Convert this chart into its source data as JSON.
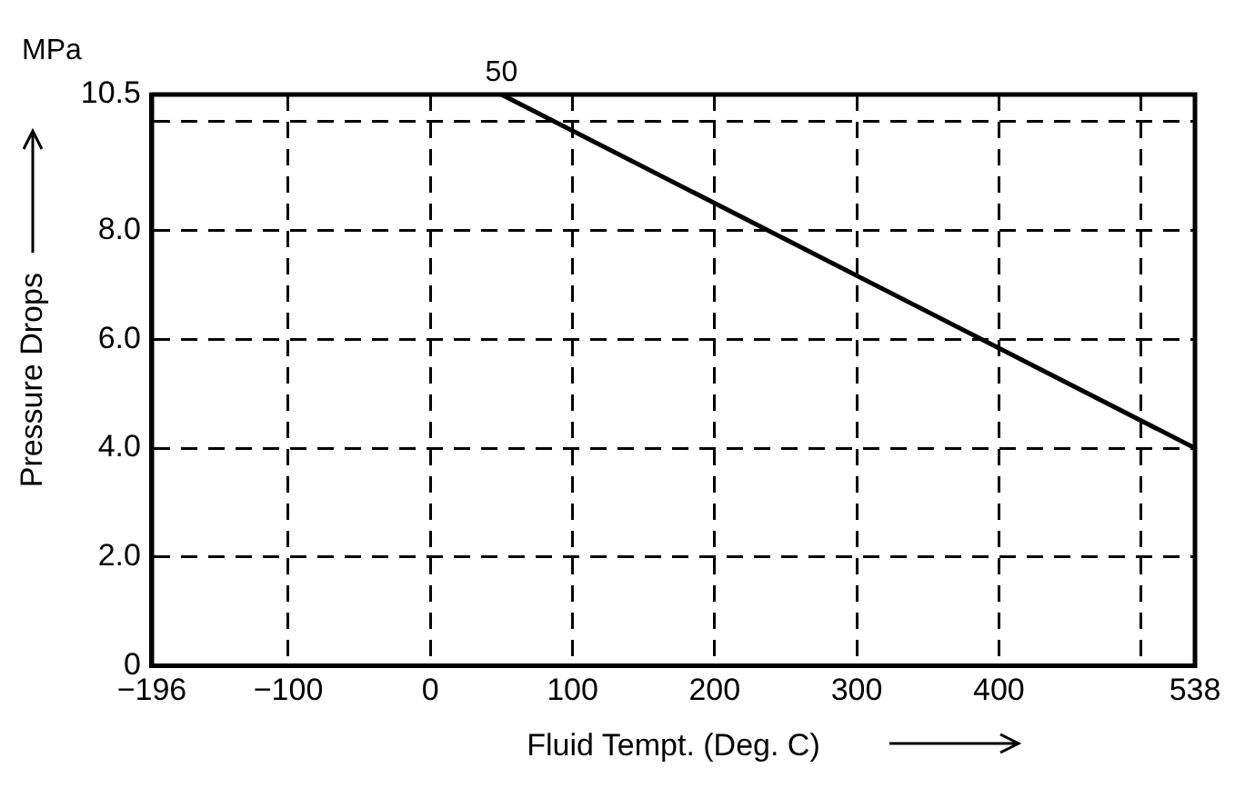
{
  "chart_data": {
    "type": "line",
    "xlabel": "Fluid Tempt. (Deg. C)",
    "ylabel": "Pressure Drops",
    "annotations": [
      "MPa",
      {
        "text": "50",
        "x": 50,
        "y": 10.5
      }
    ],
    "x": [
      50,
      538
    ],
    "series": [
      {
        "color": "#000000",
        "values": [
          10.5,
          4.0
        ]
      }
    ],
    "xlim": [
      -196,
      538
    ],
    "ylim": [
      0,
      10.5
    ],
    "xticks": [
      {
        "value": -196,
        "label": "−196"
      },
      {
        "value": -100,
        "label": "−100"
      },
      0,
      100,
      200,
      300,
      400,
      {
        "value": 500,
        "label": null
      },
      538
    ],
    "yticks": [
      0,
      {
        "value": 2,
        "label": "2.0"
      },
      {
        "value": 4,
        "label": "4.0"
      },
      {
        "value": 6,
        "label": "6.0"
      },
      {
        "value": 8,
        "label": "8.0"
      },
      {
        "value": 10,
        "label": null
      },
      10.5
    ],
    "grid": true,
    "marker": "none",
    "line_style": "solid"
  }
}
